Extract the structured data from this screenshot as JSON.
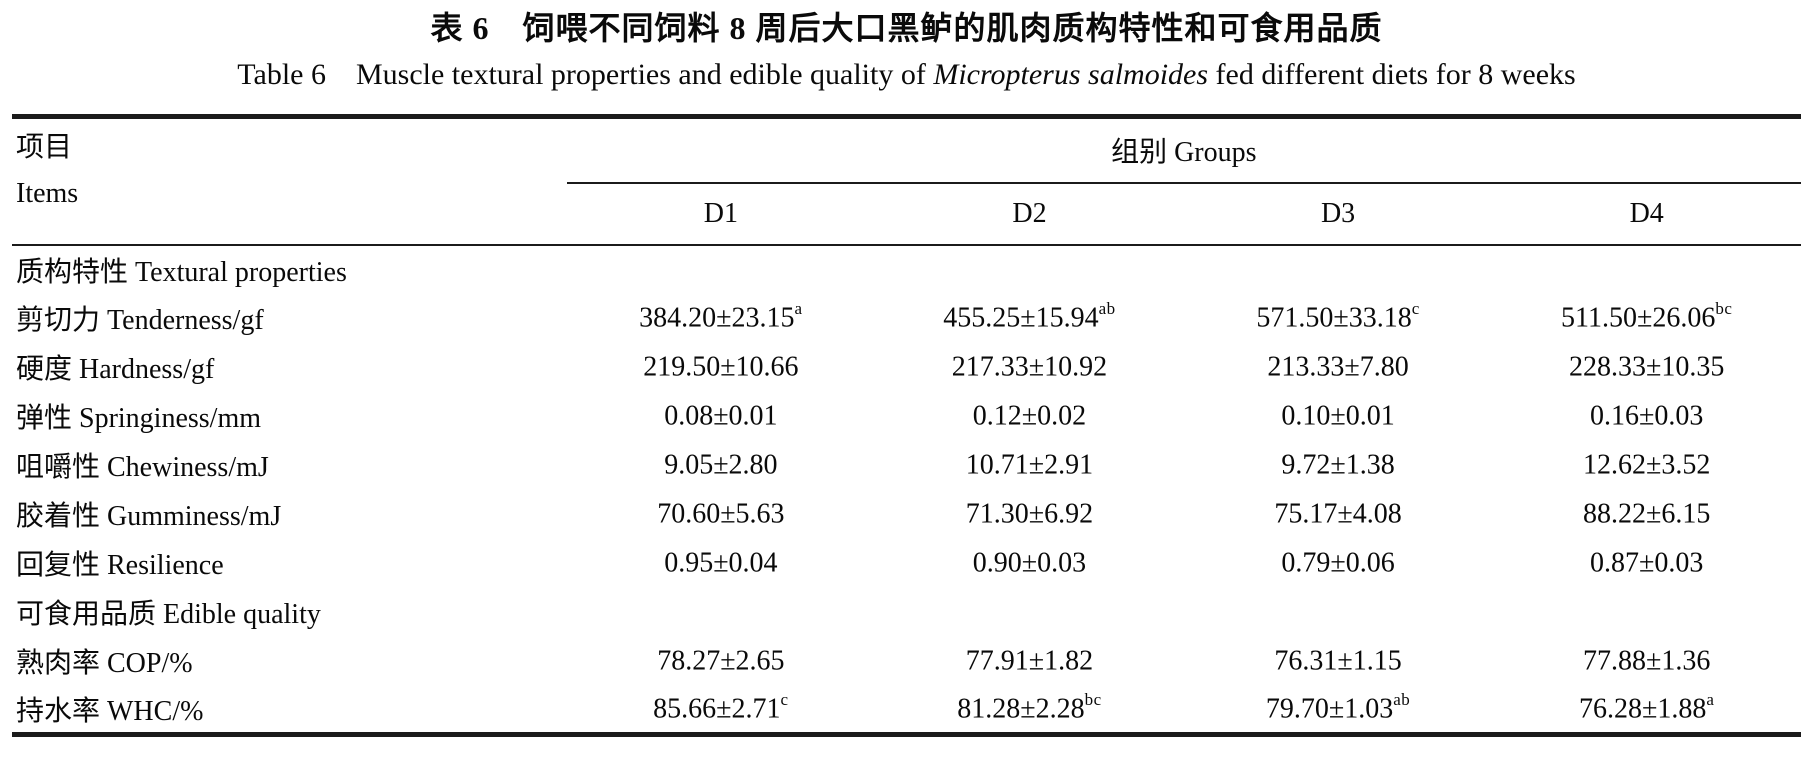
{
  "title": {
    "zh": "表 6　饲喂不同饲料 8 周后大口黑鲈的肌肉质构特性和可食用品质",
    "en_prefix": "Table 6 Muscle textural properties and edible quality of ",
    "en_italic": "Micropterus salmoides",
    "en_suffix": " fed different diets for 8 weeks"
  },
  "table": {
    "header": {
      "items_zh": "项目",
      "items_en": "Items",
      "groups": "组别 Groups",
      "columns": [
        "D1",
        "D2",
        "D3",
        "D4"
      ]
    },
    "rows": [
      {
        "type": "section",
        "label": "质构特性 Textural properties"
      },
      {
        "type": "data",
        "label": "剪切力 Tenderness/gf",
        "values": [
          {
            "v": "384.20±23.15",
            "sup": "a"
          },
          {
            "v": "455.25±15.94",
            "sup": "ab"
          },
          {
            "v": "571.50±33.18",
            "sup": "c"
          },
          {
            "v": "511.50±26.06",
            "sup": "bc"
          }
        ]
      },
      {
        "type": "data",
        "label": "硬度 Hardness/gf",
        "values": [
          {
            "v": "219.50±10.66",
            "sup": ""
          },
          {
            "v": "217.33±10.92",
            "sup": ""
          },
          {
            "v": "213.33±7.80",
            "sup": ""
          },
          {
            "v": "228.33±10.35",
            "sup": ""
          }
        ]
      },
      {
        "type": "data",
        "label": "弹性 Springiness/mm",
        "values": [
          {
            "v": "0.08±0.01",
            "sup": ""
          },
          {
            "v": "0.12±0.02",
            "sup": ""
          },
          {
            "v": "0.10±0.01",
            "sup": ""
          },
          {
            "v": "0.16±0.03",
            "sup": ""
          }
        ]
      },
      {
        "type": "data",
        "label": "咀嚼性 Chewiness/mJ",
        "values": [
          {
            "v": "9.05±2.80",
            "sup": ""
          },
          {
            "v": "10.71±2.91",
            "sup": ""
          },
          {
            "v": "9.72±1.38",
            "sup": ""
          },
          {
            "v": "12.62±3.52",
            "sup": ""
          }
        ]
      },
      {
        "type": "data",
        "label": "胶着性 Gumminess/mJ",
        "values": [
          {
            "v": "70.60±5.63",
            "sup": ""
          },
          {
            "v": "71.30±6.92",
            "sup": ""
          },
          {
            "v": "75.17±4.08",
            "sup": ""
          },
          {
            "v": "88.22±6.15",
            "sup": ""
          }
        ]
      },
      {
        "type": "data",
        "label": "回复性 Resilience",
        "values": [
          {
            "v": "0.95±0.04",
            "sup": ""
          },
          {
            "v": "0.90±0.03",
            "sup": ""
          },
          {
            "v": "0.79±0.06",
            "sup": ""
          },
          {
            "v": "0.87±0.03",
            "sup": ""
          }
        ]
      },
      {
        "type": "section",
        "label": "可食用品质 Edible quality"
      },
      {
        "type": "data",
        "label": "熟肉率 COP/%",
        "values": [
          {
            "v": "78.27±2.65",
            "sup": ""
          },
          {
            "v": "77.91±1.82",
            "sup": ""
          },
          {
            "v": "76.31±1.15",
            "sup": ""
          },
          {
            "v": "77.88±1.36",
            "sup": ""
          }
        ]
      },
      {
        "type": "data",
        "label": "持水率 WHC/%",
        "values": [
          {
            "v": "85.66±2.71",
            "sup": "c"
          },
          {
            "v": "81.28±2.28",
            "sup": "bc"
          },
          {
            "v": "79.70±1.03",
            "sup": "ab"
          },
          {
            "v": "76.28±1.88",
            "sup": "a"
          }
        ]
      }
    ]
  },
  "chart_data": {
    "type": "table",
    "title": "Table 6 Muscle textural properties and edible quality of Micropterus salmoides fed different diets for 8 weeks",
    "categories": [
      "D1",
      "D2",
      "D3",
      "D4"
    ],
    "series": [
      {
        "name": "Tenderness/gf",
        "values": [
          384.2,
          455.25,
          571.5,
          511.5
        ],
        "sd": [
          23.15,
          15.94,
          33.18,
          26.06
        ],
        "sig": [
          "a",
          "ab",
          "c",
          "bc"
        ]
      },
      {
        "name": "Hardness/gf",
        "values": [
          219.5,
          217.33,
          213.33,
          228.33
        ],
        "sd": [
          10.66,
          10.92,
          7.8,
          10.35
        ],
        "sig": [
          "",
          "",
          "",
          ""
        ]
      },
      {
        "name": "Springiness/mm",
        "values": [
          0.08,
          0.12,
          0.1,
          0.16
        ],
        "sd": [
          0.01,
          0.02,
          0.01,
          0.03
        ],
        "sig": [
          "",
          "",
          "",
          ""
        ]
      },
      {
        "name": "Chewiness/mJ",
        "values": [
          9.05,
          10.71,
          9.72,
          12.62
        ],
        "sd": [
          2.8,
          2.91,
          1.38,
          3.52
        ],
        "sig": [
          "",
          "",
          "",
          ""
        ]
      },
      {
        "name": "Gumminess/mJ",
        "values": [
          70.6,
          71.3,
          75.17,
          88.22
        ],
        "sd": [
          5.63,
          6.92,
          4.08,
          6.15
        ],
        "sig": [
          "",
          "",
          "",
          ""
        ]
      },
      {
        "name": "Resilience",
        "values": [
          0.95,
          0.9,
          0.79,
          0.87
        ],
        "sd": [
          0.04,
          0.03,
          0.06,
          0.03
        ],
        "sig": [
          "",
          "",
          "",
          ""
        ]
      },
      {
        "name": "COP/%",
        "values": [
          78.27,
          77.91,
          76.31,
          77.88
        ],
        "sd": [
          2.65,
          1.82,
          1.15,
          1.36
        ],
        "sig": [
          "",
          "",
          "",
          ""
        ]
      },
      {
        "name": "WHC/%",
        "values": [
          85.66,
          81.28,
          79.7,
          76.28
        ],
        "sd": [
          2.71,
          2.28,
          1.03,
          1.88
        ],
        "sig": [
          "c",
          "bc",
          "ab",
          "a"
        ]
      }
    ]
  }
}
